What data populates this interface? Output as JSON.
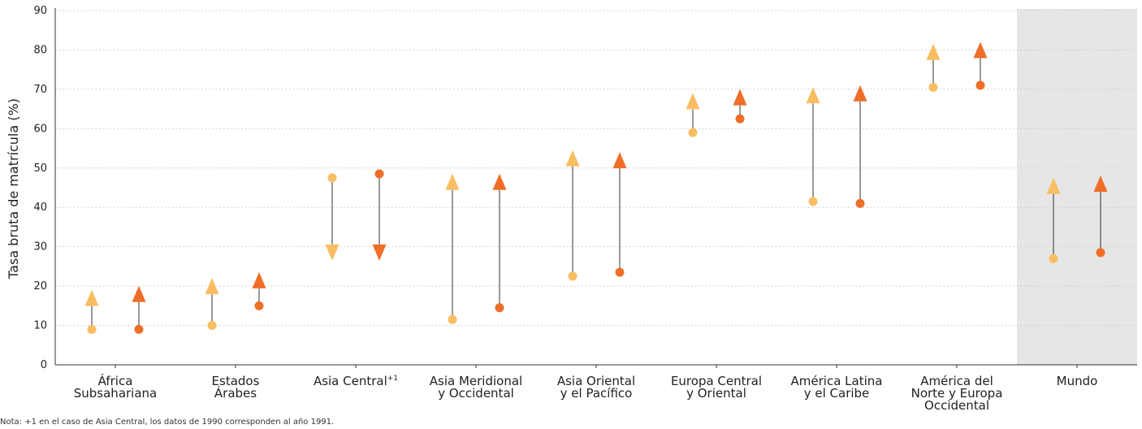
{
  "chart_data": {
    "type": "dot-arrow",
    "ylabel": "Tasa bruta de matrícula (%)",
    "ylim": [
      0,
      90
    ],
    "yticks": [
      0,
      10,
      20,
      30,
      40,
      50,
      60,
      70,
      80,
      90
    ],
    "grid": true,
    "highlighted_category": "Mundo",
    "colors": {
      "series_1": "#f9be62",
      "series_2": "#ef6e28",
      "stem": "#333333",
      "highlight_bg": "#e6e6e6"
    },
    "categories": [
      {
        "lines": [
          "África",
          "Subsahariana"
        ]
      },
      {
        "lines": [
          "Estados",
          "Árabes"
        ]
      },
      {
        "lines": [
          "Asia Central"
        ],
        "superscript": "+1"
      },
      {
        "lines": [
          "Asia Meridional",
          "y Occidental"
        ]
      },
      {
        "lines": [
          "Asia Oriental",
          "y el Pacífico"
        ]
      },
      {
        "lines": [
          "Europa Central",
          "y Oriental"
        ]
      },
      {
        "lines": [
          "América Latina",
          "y el Caribe"
        ]
      },
      {
        "lines": [
          "América del",
          "Norte y Europa",
          "Occidental"
        ]
      },
      {
        "lines": [
          "Mundo"
        ]
      }
    ],
    "series": [
      {
        "start": [
          9,
          10,
          47.5,
          11.5,
          22.5,
          59,
          41.5,
          70.5,
          27
        ],
        "end": [
          17,
          20,
          28.5,
          46.5,
          52.5,
          67,
          68.5,
          79.5,
          45.5
        ]
      },
      {
        "start": [
          9,
          15,
          48.5,
          14.5,
          23.5,
          62.5,
          41,
          71,
          28.5
        ],
        "end": [
          18,
          21.5,
          28.5,
          46.5,
          52,
          68,
          69,
          80,
          46
        ]
      }
    ]
  },
  "footnote": "Nota: +1 en el caso de Asia Central, los datos de 1990 corresponden al año 1991."
}
